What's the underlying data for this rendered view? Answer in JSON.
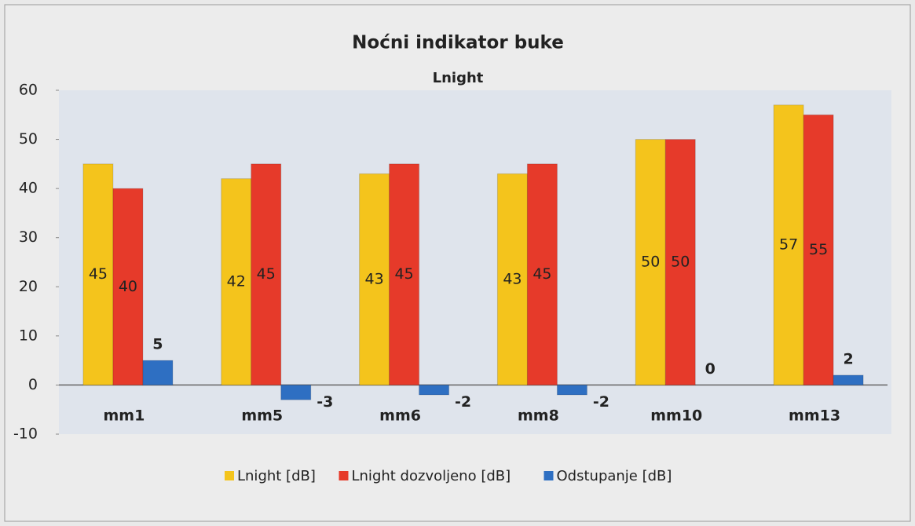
{
  "chart_data": {
    "type": "bar",
    "title": "Noćni indikator buke",
    "subtitle": "Lnight",
    "categories": [
      "mm1",
      "mm5",
      "mm6",
      "mm8",
      "mm10",
      "mm13"
    ],
    "series": [
      {
        "name": "Lnight [dB]",
        "color": "#f4c41c",
        "values": [
          45,
          42,
          43,
          43,
          50,
          57
        ]
      },
      {
        "name": "Lnight dozvoljeno [dB]",
        "color": "#e63a2a",
        "values": [
          40,
          45,
          45,
          45,
          50,
          55
        ]
      },
      {
        "name": "Odstupanje [dB]",
        "color": "#2e6fc2",
        "values": [
          5,
          -3,
          -2,
          -2,
          0,
          2
        ]
      }
    ],
    "ylim": [
      -10,
      60
    ],
    "yticks": [
      -10,
      0,
      10,
      20,
      30,
      40,
      50,
      60
    ],
    "legend": "bottom"
  }
}
